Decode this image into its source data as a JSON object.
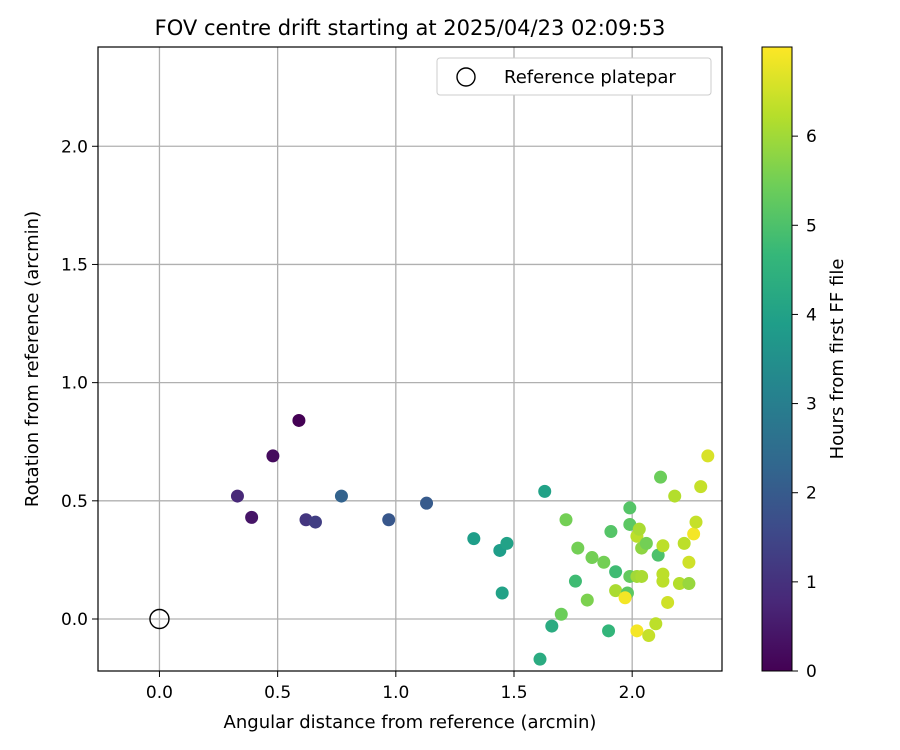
{
  "chart_data": {
    "type": "scatter",
    "title": "FOV centre drift starting at 2025/04/23 02:09:53",
    "xlabel": "Angular distance from reference (arcmin)",
    "ylabel": "Rotation from reference (arcmin)",
    "xlim": [
      -0.26,
      2.38
    ],
    "ylim": [
      -0.22,
      2.42
    ],
    "xticks": [
      0.0,
      0.5,
      1.0,
      1.5,
      2.0
    ],
    "xtick_labels": [
      "0.0",
      "0.5",
      "1.0",
      "1.5",
      "2.0"
    ],
    "yticks": [
      0.0,
      0.5,
      1.0,
      1.5,
      2.0
    ],
    "ytick_labels": [
      "0.0",
      "0.5",
      "1.0",
      "1.5",
      "2.0"
    ],
    "grid": true,
    "legend_position": "top-right",
    "legend": [
      {
        "label": "Reference platepar",
        "marker": "open-circle"
      }
    ],
    "reference_point": {
      "x": 0.0,
      "y": 0.0
    },
    "colorbar": {
      "label": "Hours from first FF file",
      "range": [
        0,
        7
      ],
      "ticks": [
        0,
        1,
        2,
        3,
        4,
        5,
        6
      ],
      "tick_labels": [
        "0",
        "1",
        "2",
        "3",
        "4",
        "5",
        "6"
      ],
      "colormap": "viridis",
      "colors": [
        "#440154",
        "#482878",
        "#3e4989",
        "#31688e",
        "#26828e",
        "#1f9e89",
        "#35b779",
        "#6ece58",
        "#b5de2b",
        "#fde725"
      ]
    },
    "points": [
      {
        "x": 0.59,
        "y": 0.84,
        "hours": 0.0
      },
      {
        "x": 0.48,
        "y": 0.69,
        "hours": 0.2
      },
      {
        "x": 0.39,
        "y": 0.43,
        "hours": 0.4
      },
      {
        "x": 0.33,
        "y": 0.52,
        "hours": 0.8
      },
      {
        "x": 0.62,
        "y": 0.42,
        "hours": 1.1
      },
      {
        "x": 0.66,
        "y": 0.41,
        "hours": 1.3
      },
      {
        "x": 0.77,
        "y": 0.52,
        "hours": 2.2
      },
      {
        "x": 0.97,
        "y": 0.42,
        "hours": 1.9
      },
      {
        "x": 1.13,
        "y": 0.49,
        "hours": 2.0
      },
      {
        "x": 1.33,
        "y": 0.34,
        "hours": 3.9
      },
      {
        "x": 1.44,
        "y": 0.29,
        "hours": 3.9
      },
      {
        "x": 1.47,
        "y": 0.32,
        "hours": 4.0
      },
      {
        "x": 1.45,
        "y": 0.11,
        "hours": 4.0
      },
      {
        "x": 1.63,
        "y": 0.54,
        "hours": 4.0
      },
      {
        "x": 1.61,
        "y": -0.17,
        "hours": 4.3
      },
      {
        "x": 1.66,
        "y": -0.03,
        "hours": 4.3
      },
      {
        "x": 1.9,
        "y": -0.05,
        "hours": 4.6
      },
      {
        "x": 1.72,
        "y": 0.42,
        "hours": 5.5
      },
      {
        "x": 1.7,
        "y": 0.02,
        "hours": 5.4
      },
      {
        "x": 1.76,
        "y": 0.16,
        "hours": 4.8
      },
      {
        "x": 1.77,
        "y": 0.3,
        "hours": 5.5
      },
      {
        "x": 1.81,
        "y": 0.08,
        "hours": 5.6
      },
      {
        "x": 1.83,
        "y": 0.26,
        "hours": 5.5
      },
      {
        "x": 1.88,
        "y": 0.24,
        "hours": 5.5
      },
      {
        "x": 1.91,
        "y": 0.37,
        "hours": 5.1
      },
      {
        "x": 1.93,
        "y": 0.2,
        "hours": 4.8
      },
      {
        "x": 1.93,
        "y": 0.12,
        "hours": 6.1
      },
      {
        "x": 1.98,
        "y": 0.11,
        "hours": 5.2
      },
      {
        "x": 1.97,
        "y": 0.09,
        "hours": 6.9
      },
      {
        "x": 1.99,
        "y": 0.47,
        "hours": 5.1
      },
      {
        "x": 1.99,
        "y": 0.4,
        "hours": 5.2
      },
      {
        "x": 1.99,
        "y": 0.18,
        "hours": 5.3
      },
      {
        "x": 2.02,
        "y": 0.35,
        "hours": 6.3
      },
      {
        "x": 2.03,
        "y": 0.38,
        "hours": 6.1
      },
      {
        "x": 2.02,
        "y": 0.18,
        "hours": 6.0
      },
      {
        "x": 2.04,
        "y": 0.18,
        "hours": 6.1
      },
      {
        "x": 2.04,
        "y": 0.3,
        "hours": 5.8
      },
      {
        "x": 2.06,
        "y": 0.32,
        "hours": 5.5
      },
      {
        "x": 2.02,
        "y": -0.05,
        "hours": 6.9
      },
      {
        "x": 2.07,
        "y": -0.07,
        "hours": 6.4
      },
      {
        "x": 2.1,
        "y": -0.02,
        "hours": 6.3
      },
      {
        "x": 2.11,
        "y": 0.27,
        "hours": 5.0
      },
      {
        "x": 2.12,
        "y": 0.6,
        "hours": 5.4
      },
      {
        "x": 2.13,
        "y": 0.16,
        "hours": 6.3
      },
      {
        "x": 2.13,
        "y": 0.19,
        "hours": 6.3
      },
      {
        "x": 2.13,
        "y": 0.31,
        "hours": 6.3
      },
      {
        "x": 2.15,
        "y": 0.07,
        "hours": 6.5
      },
      {
        "x": 2.18,
        "y": 0.52,
        "hours": 6.2
      },
      {
        "x": 2.2,
        "y": 0.15,
        "hours": 6.2
      },
      {
        "x": 2.22,
        "y": 0.32,
        "hours": 6.3
      },
      {
        "x": 2.24,
        "y": 0.15,
        "hours": 5.9
      },
      {
        "x": 2.24,
        "y": 0.24,
        "hours": 6.5
      },
      {
        "x": 2.26,
        "y": 0.36,
        "hours": 6.9
      },
      {
        "x": 2.27,
        "y": 0.41,
        "hours": 6.4
      },
      {
        "x": 2.29,
        "y": 0.56,
        "hours": 6.4
      },
      {
        "x": 2.32,
        "y": 0.69,
        "hours": 6.6
      }
    ]
  }
}
